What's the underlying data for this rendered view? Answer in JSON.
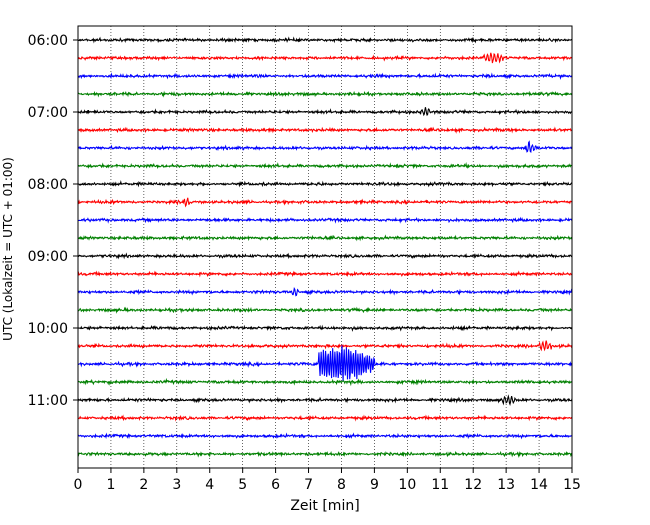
{
  "chart_data": {
    "type": "line",
    "xlabel": "Zeit  [min]",
    "ylabel": "UTC (Lokalzeit = UTC + 01:00)",
    "xlim": [
      0,
      15
    ],
    "x_ticks": [
      0,
      1,
      2,
      3,
      4,
      5,
      6,
      7,
      8,
      9,
      10,
      11,
      12,
      13,
      14,
      15
    ],
    "grid_x": true,
    "trace_interval_min": 15,
    "start_time": "06:00",
    "trace_count": 24,
    "y_ticks": [
      "06:00",
      "07:00",
      "08:00",
      "09:00",
      "10:00",
      "11:00"
    ],
    "trace_colors": [
      "#000000",
      "#ff0000",
      "#0000ff",
      "#008000"
    ],
    "events": [
      {
        "trace_time": "10:30",
        "minute_start": 7.3,
        "minute_end": 9.0,
        "peak_minute": 7.95,
        "note": "strong oscillation"
      },
      {
        "trace_time": "06:15",
        "minute_start": 12.3,
        "minute_end": 12.9,
        "peak_minute": 12.6
      },
      {
        "trace_time": "07:30",
        "minute_start": 13.6,
        "minute_end": 13.9,
        "peak_minute": 13.7
      },
      {
        "trace_time": "07:00",
        "minute_start": 10.4,
        "minute_end": 10.7,
        "peak_minute": 10.55
      },
      {
        "trace_time": "08:15",
        "minute_start": 3.2,
        "minute_end": 3.4,
        "peak_minute": 3.3
      },
      {
        "trace_time": "09:30",
        "minute_start": 6.5,
        "minute_end": 6.7,
        "peak_minute": 6.6
      },
      {
        "trace_time": "11:00",
        "minute_start": 12.9,
        "minute_end": 13.3,
        "peak_minute": 13.05
      },
      {
        "trace_time": "10:15",
        "minute_start": 14.0,
        "minute_end": 14.4,
        "peak_minute": 14.2
      }
    ]
  }
}
